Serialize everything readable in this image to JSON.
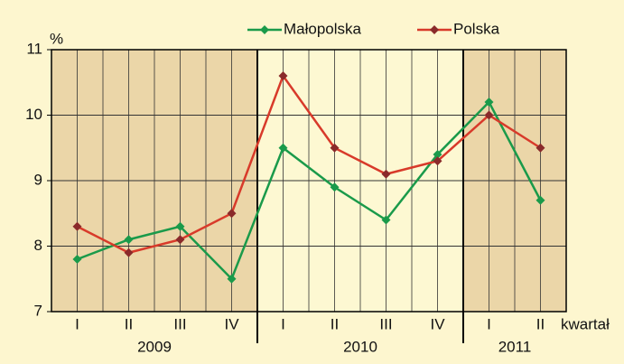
{
  "chart_data": {
    "type": "line",
    "y_label": "%",
    "x_label": "kwartał",
    "categories": [
      "I",
      "II",
      "III",
      "IV",
      "I",
      "II",
      "III",
      "IV",
      "I",
      "II"
    ],
    "groups": [
      {
        "label": "2009",
        "size": 4,
        "color": "#ebd6a8"
      },
      {
        "label": "2010",
        "size": 4,
        "color": "#fdf8d2"
      },
      {
        "label": "2011",
        "size": 2,
        "color": "#ebd6a8"
      }
    ],
    "series": [
      {
        "name": "Małopolska",
        "color": "#1a9a4a",
        "values": [
          7.8,
          8.1,
          8.3,
          7.5,
          9.5,
          8.9,
          8.4,
          9.4,
          10.2,
          8.7
        ]
      },
      {
        "name": "Polska",
        "color": "#d83a2a",
        "values": [
          8.3,
          7.9,
          8.1,
          8.5,
          10.6,
          9.5,
          9.1,
          9.3,
          10.0,
          9.5
        ]
      }
    ],
    "ylim": [
      7,
      11
    ],
    "yticks": [
      7,
      8,
      9,
      10,
      11
    ],
    "grid": true,
    "legend": "top"
  }
}
